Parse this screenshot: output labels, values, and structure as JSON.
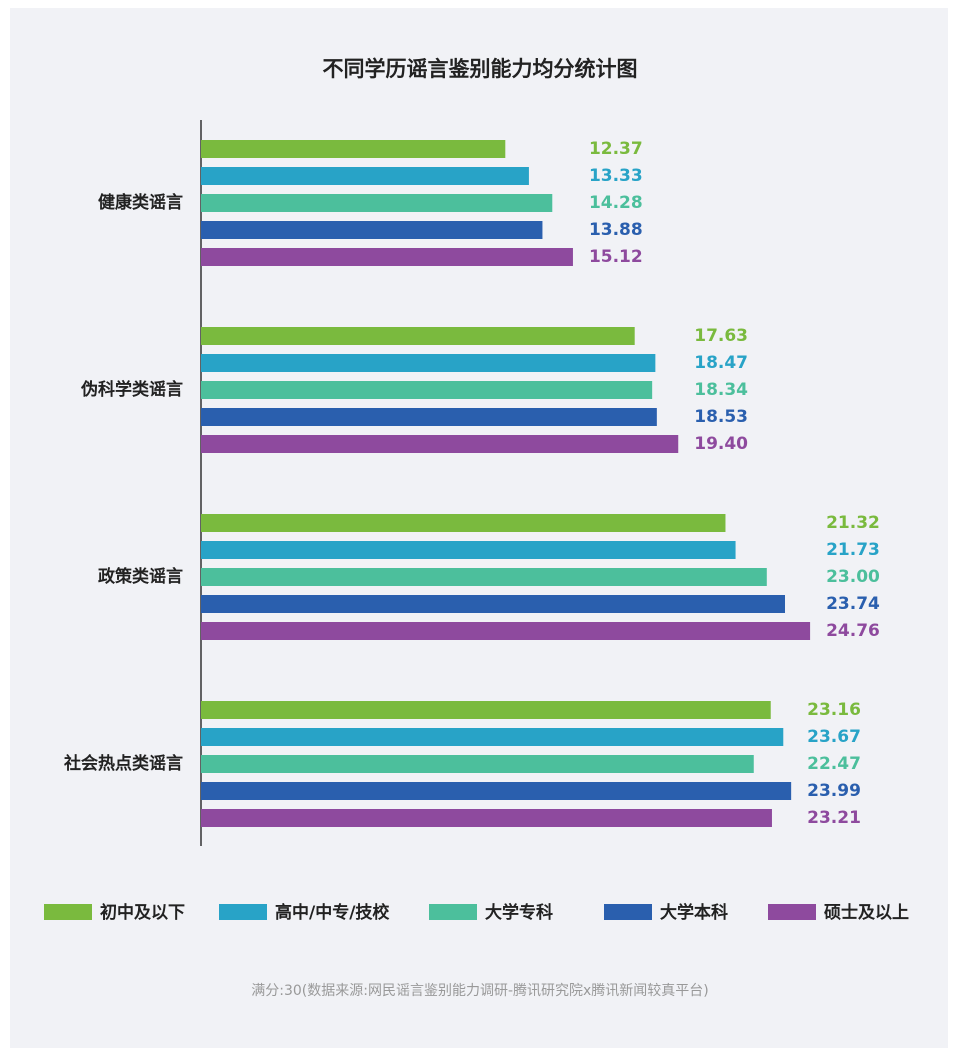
{
  "chart_data": {
    "type": "hbar",
    "title": "不同学历谣言鉴别能力均分统计图",
    "categories": [
      "健康类谣言",
      "伪科学类谣言",
      "政策类谣言",
      "社会热点类谣言"
    ],
    "xlim": [
      0,
      30
    ],
    "series": [
      {
        "name": "初中及以下",
        "color": "#7aba3e",
        "values": [
          12.37,
          17.63,
          21.32,
          23.16
        ],
        "value_labels": [
          "12.37",
          "17.63",
          "21.32",
          "23.16"
        ]
      },
      {
        "name": "高中/中专/技校",
        "color": "#28a3c7",
        "values": [
          13.33,
          18.47,
          21.73,
          23.67
        ],
        "value_labels": [
          "13.33",
          "18.47",
          "21.73",
          "23.67"
        ]
      },
      {
        "name": "大学专科",
        "color": "#4cbf9c",
        "values": [
          14.28,
          18.34,
          23.0,
          22.47
        ],
        "value_labels": [
          "14.28",
          "18.34",
          "23.00",
          "22.47"
        ]
      },
      {
        "name": "大学本科",
        "color": "#2a5fae",
        "values": [
          13.88,
          18.53,
          23.74,
          23.99
        ],
        "value_labels": [
          "13.88",
          "18.53",
          "23.74",
          "23.99"
        ]
      },
      {
        "name": "硕士及以上",
        "color": "#8e4a9e",
        "values": [
          15.12,
          19.4,
          24.76,
          23.21
        ],
        "value_labels": [
          "15.12",
          "19.40",
          "24.76",
          "23.21"
        ]
      }
    ],
    "footnote": "满分:30(数据来源:网民谣言鉴别能力调研-腾讯研究院x腾讯新闻较真平台)"
  }
}
